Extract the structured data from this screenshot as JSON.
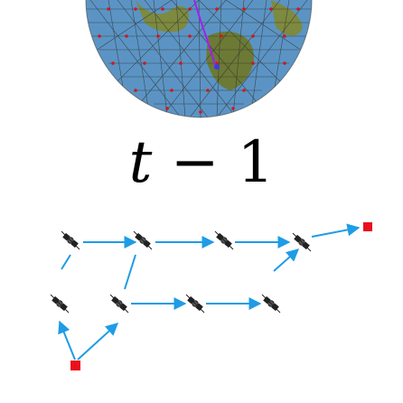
{
  "title": {
    "variable": "t",
    "operator": "−",
    "number": "1"
  },
  "colors": {
    "arrow": "#1e9ce6",
    "ground_node": "#e8101c",
    "satellite": "#222222",
    "globe_ocean": "#4f8fc0",
    "globe_land": "#6f7a3a",
    "mesh": "#d01818",
    "orbit_track": "#a020f0"
  },
  "icons": {
    "satellite": "satellite-icon",
    "ground": "ground-station-icon",
    "globe": "earth-globe-icon"
  },
  "graph": {
    "row1_satellites": 4,
    "row2_satellites": 4,
    "ground_stations": 2,
    "links": [
      {
        "from": "sat-r1-1",
        "to": "sat-r1-2"
      },
      {
        "from": "sat-r1-2",
        "to": "sat-r1-3"
      },
      {
        "from": "sat-r1-3",
        "to": "sat-r1-4"
      },
      {
        "from": "sat-r1-4",
        "to": "ground-right"
      },
      {
        "from": "sat-r2-2",
        "to": "sat-r1-2"
      },
      {
        "from": "sat-r2-4",
        "to": "sat-r1-4"
      },
      {
        "from": "sat-r2-1",
        "to": "sat-r1-1"
      },
      {
        "from": "sat-r2-2",
        "to": "sat-r2-3"
      },
      {
        "from": "sat-r2-3",
        "to": "sat-r2-4"
      },
      {
        "from": "ground-bottom",
        "to": "sat-r2-1"
      },
      {
        "from": "ground-bottom",
        "to": "sat-r2-2"
      }
    ]
  }
}
